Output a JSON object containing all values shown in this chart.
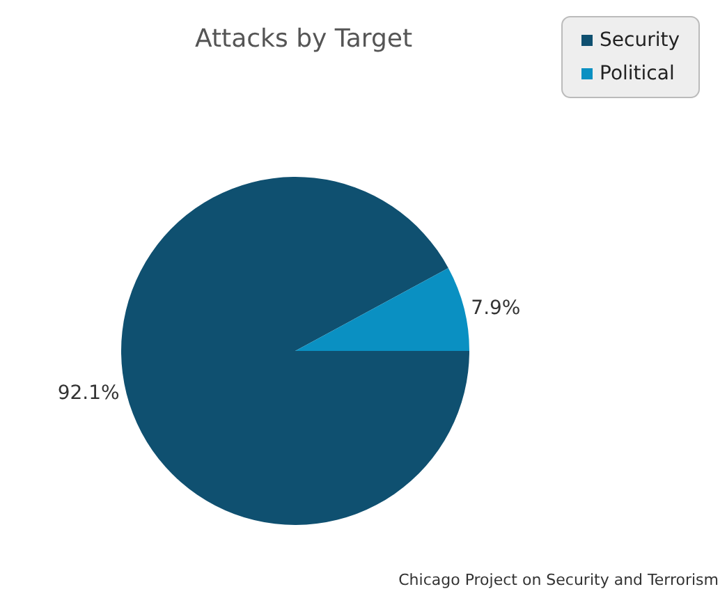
{
  "chart_data": {
    "type": "pie",
    "title": "Attacks by Target",
    "categories": [
      "Security",
      "Political"
    ],
    "values": [
      92.1,
      7.9
    ],
    "colors": [
      "#0f5070",
      "#0a90c2"
    ],
    "value_labels": [
      "92.1%",
      "7.9%"
    ],
    "legend": "top right",
    "annotations": [
      "Chicago Project on Security and Terrorism"
    ]
  }
}
